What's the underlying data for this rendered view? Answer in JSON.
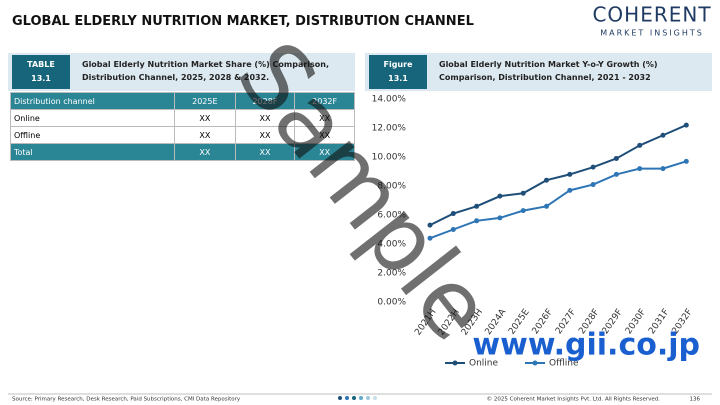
{
  "header": {
    "title": "GLOBAL ELDERLY NUTRITION MARKET, DISTRIBUTION CHANNEL",
    "logo": "COHERENT",
    "logo_sub": "MARKET INSIGHTS"
  },
  "table_caption": {
    "label": "TABLE",
    "number": "13.1",
    "text": "Global Elderly Nutrition Market Share (%) Comparison, Distribution Channel, 2025, 2028 & 2032."
  },
  "table": {
    "columns": [
      "Distribution channel",
      "2025E",
      "2028F",
      "2032F"
    ],
    "rows": [
      [
        "Online",
        "XX",
        "XX",
        "XX"
      ],
      [
        "Offline",
        "XX",
        "XX",
        "XX"
      ],
      [
        "Total",
        "XX",
        "XX",
        "XX"
      ]
    ]
  },
  "figure_caption": {
    "label": "Figure",
    "number": "13.1",
    "text": "Global Elderly Nutrition Market Y-o-Y Growth (%) Comparison, Distribution Channel, 2021 - 2032"
  },
  "chart_data": {
    "type": "line",
    "categories": [
      "2021H",
      "2022H",
      "2023H",
      "2024A",
      "2025E",
      "2026F",
      "2027F",
      "2028F",
      "2029F",
      "2030F",
      "2031F",
      "2032F"
    ],
    "series": [
      {
        "name": "Online",
        "color": "#1f4e79",
        "values": [
          5.3,
          6.1,
          6.6,
          7.3,
          7.5,
          8.4,
          8.8,
          9.3,
          9.9,
          10.8,
          11.5,
          12.2
        ]
      },
      {
        "name": "Offline",
        "color": "#2e75b6",
        "values": [
          4.4,
          5.0,
          5.6,
          5.8,
          6.3,
          6.6,
          7.7,
          8.1,
          8.8,
          9.2,
          9.2,
          9.7
        ]
      }
    ],
    "ylim": [
      0,
      14
    ],
    "yticks": [
      {
        "value": 0,
        "label": "0.00%"
      },
      {
        "value": 2,
        "label": "2.00%"
      },
      {
        "value": 4,
        "label": "4.00%"
      },
      {
        "value": 6,
        "label": "6.00%"
      },
      {
        "value": 8,
        "label": "8.00%"
      },
      {
        "value": 10,
        "label": "10.00%"
      },
      {
        "value": 12,
        "label": "12.00%"
      },
      {
        "value": 14,
        "label": "14.00%"
      }
    ],
    "grid": false,
    "legend": "bottom"
  },
  "watermarks": [
    "Sample",
    "www.gii.co.jp"
  ],
  "footer": {
    "source": "Source: Primary Research, Desk Research, Paid Subscriptions, CMI Data Repository",
    "copyright": "© 2025 Coherent Market Insights Pvt. Ltd. All Rights Reserved.",
    "page": "136"
  }
}
